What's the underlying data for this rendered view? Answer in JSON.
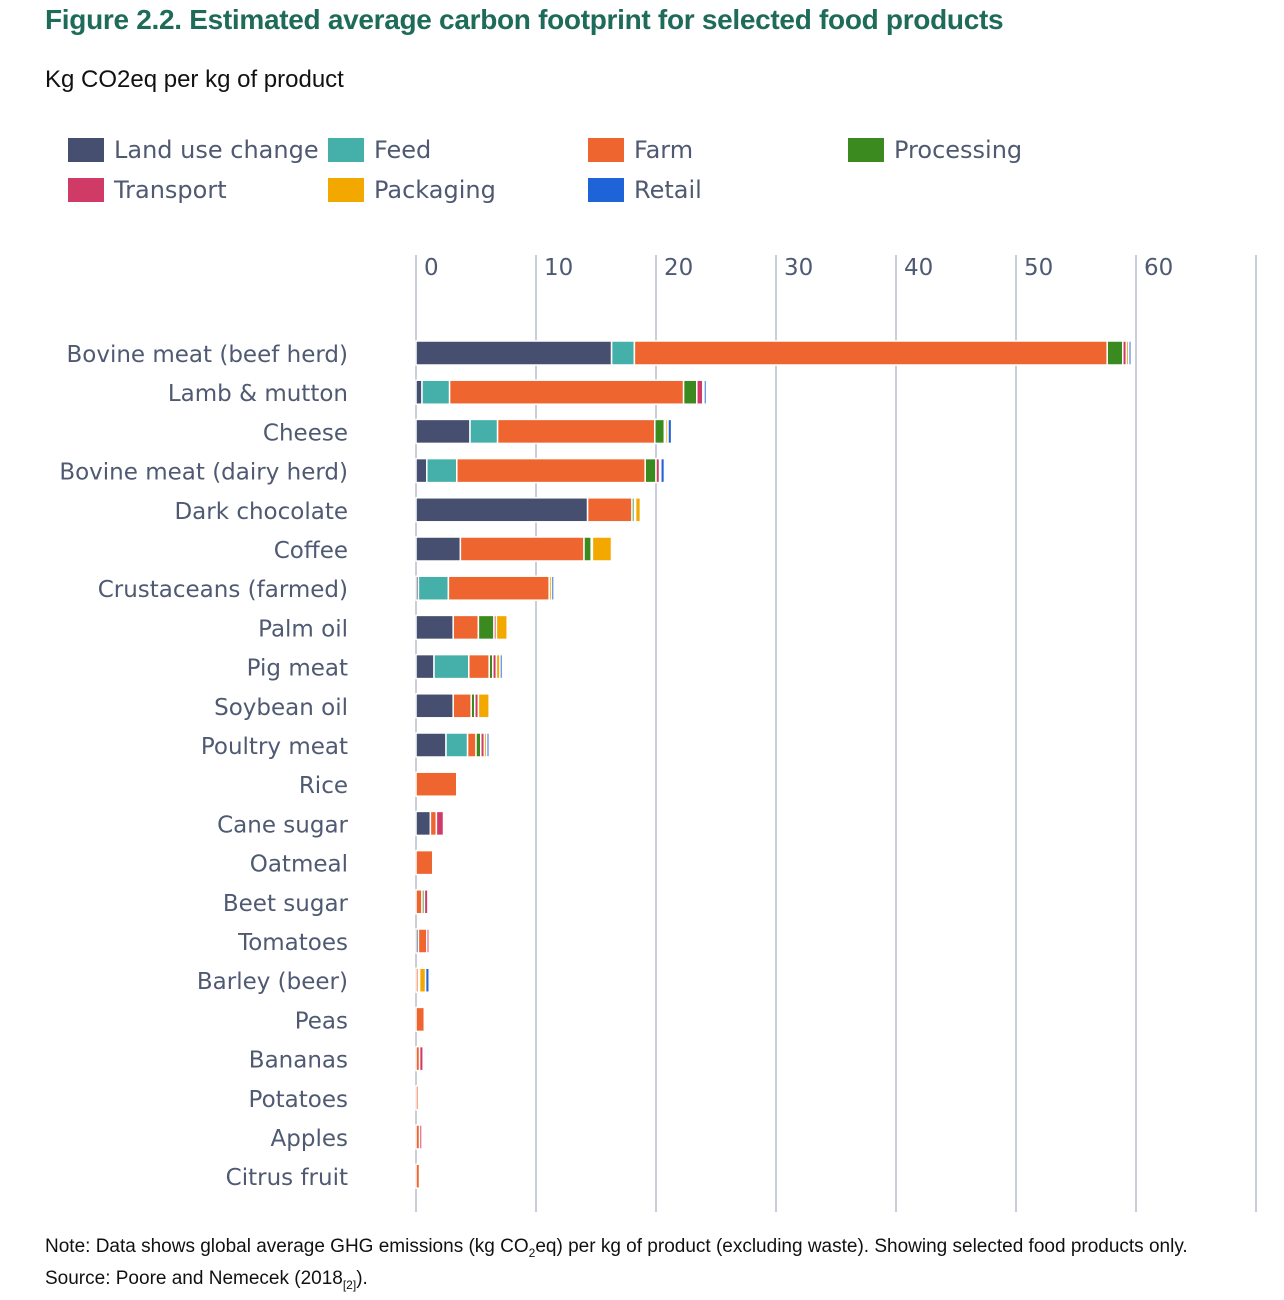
{
  "figure_title": "Figure 2.2. Estimated average carbon footprint for selected food products",
  "figure_subtitle": "Kg CO2eq per kg of product",
  "note": {
    "prefix": "Note: Data shows global average GHG emissions (kg CO",
    "sub": "2",
    "suffix": "eq) per kg of product (excluding waste). Showing selected food products only."
  },
  "source": {
    "prefix": "Source: Poore and Nemecek (2018",
    "ref": "[2]",
    "suffix": ")."
  },
  "chart_data": {
    "type": "bar",
    "orientation": "horizontal",
    "stacked": true,
    "title": "Figure 2.2. Estimated average carbon footprint for selected food products",
    "subtitle": "Kg CO2eq per kg of product",
    "xlabel": "",
    "ylabel": "",
    "xlim": [
      0,
      70
    ],
    "xticks": [
      0,
      10,
      20,
      30,
      40,
      50,
      60
    ],
    "grid": true,
    "legend_position": "top",
    "categories": [
      "Bovine meat (beef herd)",
      "Lamb & mutton",
      "Cheese",
      "Bovine meat (dairy herd)",
      "Dark chocolate",
      "Coffee",
      "Crustaceans (farmed)",
      "Palm oil",
      "Pig meat",
      "Soybean oil",
      "Poultry meat",
      "Rice",
      "Cane sugar",
      "Oatmeal",
      "Beet sugar",
      "Tomatoes",
      "Barley (beer)",
      "Peas",
      "Bananas",
      "Potatoes",
      "Apples",
      "Citrus fruit"
    ],
    "series": [
      {
        "name": "Land use change",
        "color": "#464f6f",
        "values": [
          16.3,
          0.5,
          4.5,
          0.9,
          14.3,
          3.7,
          0.2,
          3.1,
          1.5,
          3.1,
          2.5,
          0.0,
          1.2,
          0.0,
          0.0,
          0.2,
          0.0,
          0.0,
          0.0,
          0.0,
          0.0,
          0.0
        ]
      },
      {
        "name": "Feed",
        "color": "#45b0aa",
        "values": [
          1.9,
          2.3,
          2.3,
          2.5,
          0.0,
          0.0,
          2.5,
          0.0,
          2.9,
          0.0,
          1.8,
          0.0,
          0.0,
          0.0,
          0.0,
          0.0,
          0.0,
          0.0,
          0.0,
          0.0,
          0.0,
          0.0
        ]
      },
      {
        "name": "Farm",
        "color": "#ee6530",
        "values": [
          39.4,
          19.5,
          13.1,
          15.7,
          3.7,
          10.3,
          8.4,
          2.1,
          1.7,
          1.5,
          0.7,
          3.4,
          0.5,
          1.4,
          0.5,
          0.7,
          0.2,
          0.7,
          0.3,
          0.2,
          0.3,
          0.3
        ]
      },
      {
        "name": "Processing",
        "color": "#3a8a1f",
        "values": [
          1.3,
          1.1,
          0.8,
          0.9,
          0.2,
          0.6,
          0.0,
          1.3,
          0.3,
          0.3,
          0.4,
          0.0,
          0.0,
          0.0,
          0.2,
          0.0,
          0.0,
          0.0,
          0.0,
          0.0,
          0.0,
          0.0
        ]
      },
      {
        "name": "Transport",
        "color": "#cf3a67",
        "values": [
          0.3,
          0.5,
          0.1,
          0.3,
          0.1,
          0.1,
          0.0,
          0.2,
          0.3,
          0.3,
          0.3,
          0.1,
          0.6,
          0.1,
          0.3,
          0.2,
          0.1,
          0.1,
          0.3,
          0.1,
          0.2,
          0.1
        ]
      },
      {
        "name": "Packaging",
        "color": "#f3a800",
        "values": [
          0.2,
          0.1,
          0.2,
          0.1,
          0.4,
          1.6,
          0.2,
          0.9,
          0.3,
          0.9,
          0.2,
          0.1,
          0.1,
          0.1,
          0.1,
          0.1,
          0.5,
          0.0,
          0.1,
          0.0,
          0.0,
          0.0
        ]
      },
      {
        "name": "Retail",
        "color": "#1f63d8",
        "values": [
          0.2,
          0.2,
          0.3,
          0.3,
          0.0,
          0.1,
          0.2,
          0.0,
          0.2,
          0.1,
          0.2,
          0.0,
          0.0,
          0.0,
          0.0,
          0.0,
          0.3,
          0.0,
          0.0,
          0.0,
          0.0,
          0.0
        ]
      }
    ]
  }
}
